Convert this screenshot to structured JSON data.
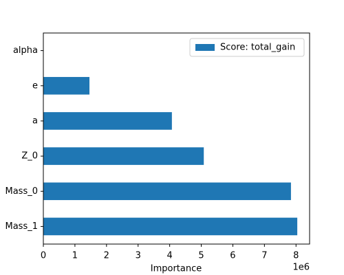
{
  "chart_data": {
    "type": "barh",
    "categories": [
      "Mass_1",
      "Mass_0",
      "Z_0",
      "a",
      "e",
      "alpha"
    ],
    "series": [
      {
        "name": "Score: total_gain",
        "color": "#1f77b4",
        "values": [
          8040000,
          7840000,
          5080000,
          4070000,
          1460000,
          0
        ]
      }
    ],
    "xlabel": "Importance",
    "x_offset_label": "1e6",
    "xlim": [
      0,
      8430000
    ],
    "xticks": [
      0,
      {
        "value": 1000000,
        "label": "1"
      },
      {
        "value": 2000000,
        "label": "2"
      },
      {
        "value": 3000000,
        "label": "3"
      },
      {
        "value": 4000000,
        "label": "4"
      },
      {
        "value": 5000000,
        "label": "5"
      },
      {
        "value": 6000000,
        "label": "6"
      },
      {
        "value": 7000000,
        "label": "7"
      },
      {
        "value": 8000000,
        "label": "8"
      }
    ],
    "legend": "upper right"
  }
}
